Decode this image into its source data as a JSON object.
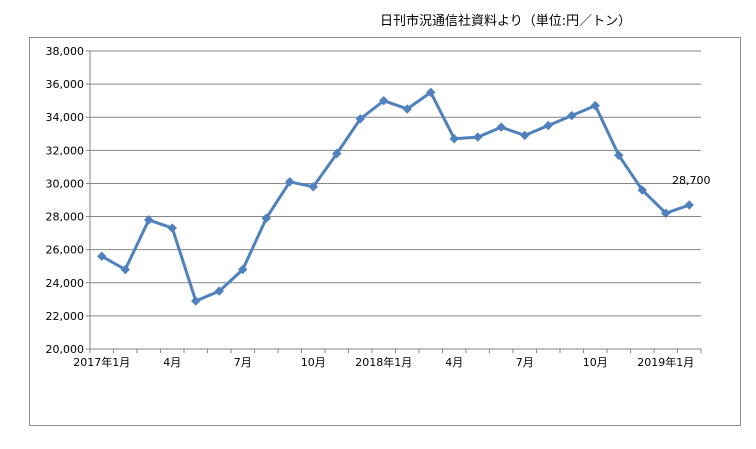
{
  "header": {
    "note": "日刊市況通信社資料より（単位:円／トン）"
  },
  "chart_data": {
    "type": "line",
    "title": "",
    "xlabel": "",
    "ylabel": "",
    "unit_note": "日刊市況通信社資料より（単位:円／トン）",
    "x": [
      "2017-01",
      "2017-02",
      "2017-03",
      "2017-04",
      "2017-05",
      "2017-06",
      "2017-07",
      "2017-08",
      "2017-09",
      "2017-10",
      "2017-11",
      "2017-12",
      "2018-01",
      "2018-02",
      "2018-03",
      "2018-04",
      "2018-05",
      "2018-06",
      "2018-07",
      "2018-08",
      "2018-09",
      "2018-10",
      "2018-11",
      "2018-12",
      "2019-01",
      "2019-02"
    ],
    "x_tick_labels": [
      {
        "index": 0,
        "label": "2017年1月"
      },
      {
        "index": 3,
        "label": "4月"
      },
      {
        "index": 6,
        "label": "7月"
      },
      {
        "index": 9,
        "label": "10月"
      },
      {
        "index": 12,
        "label": "2018年1月"
      },
      {
        "index": 15,
        "label": "4月"
      },
      {
        "index": 18,
        "label": "7月"
      },
      {
        "index": 21,
        "label": "10月"
      },
      {
        "index": 24,
        "label": "2019年1月"
      }
    ],
    "series": [
      {
        "color": "#4f81bd",
        "marker": "diamond",
        "values": [
          25600,
          24800,
          27800,
          27300,
          22900,
          23500,
          24800,
          27900,
          30100,
          29800,
          31800,
          33900,
          35000,
          34500,
          35500,
          32700,
          32800,
          33400,
          32900,
          33500,
          34100,
          34700,
          31700,
          29600,
          28200,
          28700
        ]
      }
    ],
    "data_labels": [
      {
        "index": 25,
        "text": "28,700"
      }
    ],
    "ylim": [
      20000,
      38000
    ],
    "y_ticks": [
      "20,000",
      "22,000",
      "24,000",
      "26,000",
      "28,000",
      "30,000",
      "32,000",
      "34,000",
      "36,000",
      "38,000"
    ],
    "y_tick_values": [
      20000,
      22000,
      24000,
      26000,
      28000,
      30000,
      32000,
      34000,
      36000,
      38000
    ],
    "grid": true,
    "legend": "none"
  }
}
